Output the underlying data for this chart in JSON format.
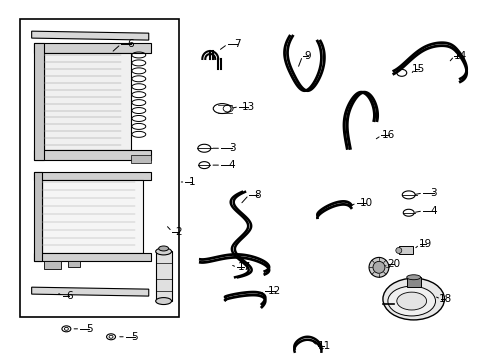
{
  "background_color": "#ffffff",
  "line_color": "#000000",
  "text_color": "#000000",
  "label_data": [
    [
      "1",
      192,
      182,
      178,
      182
    ],
    [
      "2",
      178,
      232,
      165,
      225
    ],
    [
      "3",
      232,
      148,
      210,
      148
    ],
    [
      "4",
      232,
      165,
      210,
      165
    ],
    [
      "5",
      88,
      330,
      70,
      330
    ],
    [
      "5",
      134,
      338,
      116,
      338
    ],
    [
      "6",
      130,
      43,
      110,
      52
    ],
    [
      "6",
      68,
      297,
      55,
      293
    ],
    [
      "7",
      237,
      43,
      218,
      50
    ],
    [
      "8",
      258,
      195,
      240,
      205
    ],
    [
      "9",
      308,
      55,
      298,
      68
    ],
    [
      "10",
      367,
      203,
      348,
      208
    ],
    [
      "11",
      325,
      347,
      312,
      342
    ],
    [
      "12",
      275,
      292,
      255,
      297
    ],
    [
      "13",
      248,
      106,
      230,
      108
    ],
    [
      "14",
      462,
      55,
      450,
      62
    ],
    [
      "15",
      420,
      68,
      412,
      74
    ],
    [
      "16",
      390,
      135,
      375,
      140
    ],
    [
      "17",
      244,
      268,
      230,
      265
    ],
    [
      "18",
      447,
      300,
      438,
      298
    ],
    [
      "19",
      427,
      245,
      415,
      250
    ],
    [
      "20",
      395,
      265,
      384,
      268
    ],
    [
      "3",
      435,
      193,
      414,
      195
    ],
    [
      "4",
      435,
      211,
      414,
      213
    ]
  ]
}
